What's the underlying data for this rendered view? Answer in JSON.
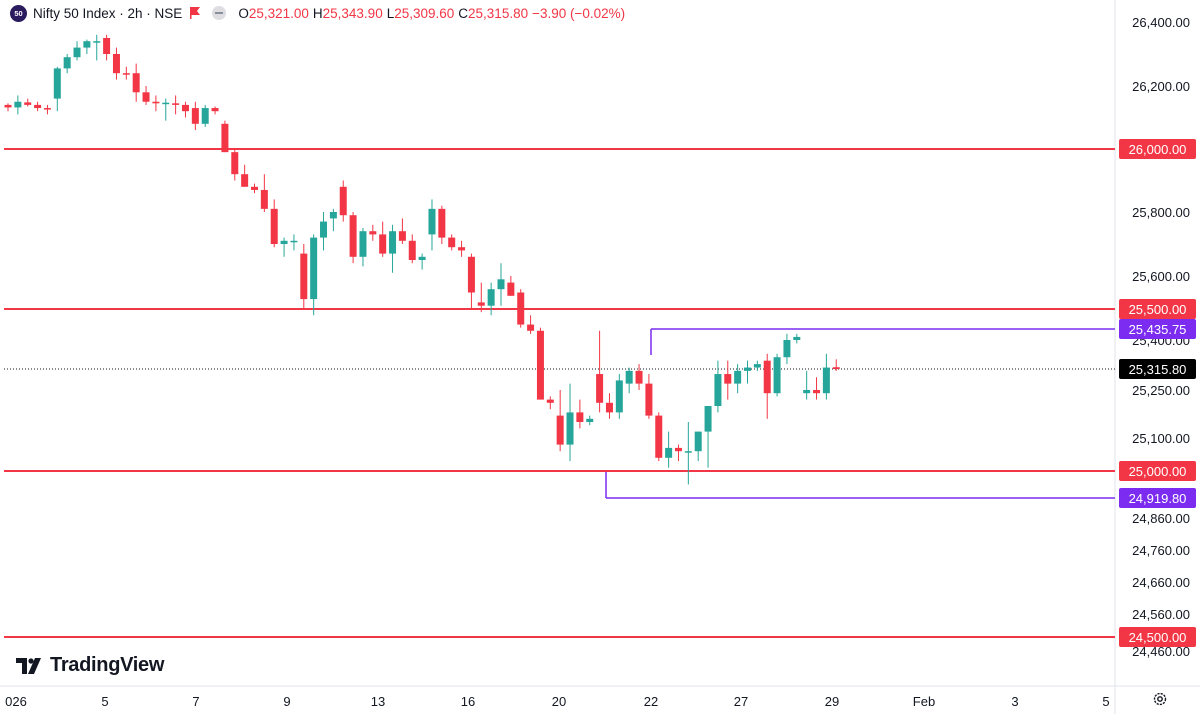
{
  "header": {
    "symbol_badge": "50",
    "title": "Nifty 50 Index · 2h · NSE",
    "ohlc": {
      "o_label": "O",
      "o_value": "25,321.00",
      "h_label": "H",
      "h_value": "25,343.90",
      "l_label": "L",
      "l_value": "25,309.60",
      "c_label": "C",
      "c_value": "25,315.80",
      "change": "−3.90 (−0.02%)"
    }
  },
  "logo": {
    "text": "TradingView"
  },
  "icons": {
    "symbol": "nifty-50-badge",
    "flag": "flag-icon",
    "visibility": "eye-icon",
    "settings": "gear-icon"
  },
  "colors": {
    "up": "#26a69a",
    "down": "#f23645",
    "level_line": "#f23645",
    "range_line": "#7b2cf0",
    "price_line": "#131722"
  },
  "chart_data": {
    "type": "candlestick",
    "title": "",
    "ylim": [
      24400,
      26420
    ],
    "y_ticks": [
      "26,400.00",
      "26,200.00",
      "25,800.00",
      "25,600.00",
      "25,400.00",
      "25,250.00",
      "25,100.00",
      "24,860.00",
      "24,760.00",
      "24,660.00",
      "24,560.00",
      "24,460.00"
    ],
    "x_ticks": [
      "026",
      "5",
      "7",
      "9",
      "13",
      "16",
      "20",
      "22",
      "27",
      "29",
      "Feb",
      "3",
      "5"
    ],
    "price_labels": [
      {
        "value": 26000,
        "text": "26,000.00",
        "kind": "level"
      },
      {
        "value": 25500,
        "text": "25,500.00",
        "kind": "level"
      },
      {
        "value": 25435.75,
        "text": "25,435.75",
        "kind": "range"
      },
      {
        "value": 25315.8,
        "text": "25,315.80",
        "kind": "last"
      },
      {
        "value": 25000,
        "text": "25,000.00",
        "kind": "level"
      },
      {
        "value": 24919.8,
        "text": "24,919.80",
        "kind": "range"
      },
      {
        "value": 24500,
        "text": "24,500.00",
        "kind": "level"
      }
    ],
    "horizontal_levels": [
      26000,
      25500,
      25000,
      24500
    ],
    "range_box": {
      "high": 25435.75,
      "low": 24919.8
    },
    "candles": [
      [
        26140,
        26145,
        26120,
        26132
      ],
      [
        26132,
        26170,
        26110,
        26150
      ],
      [
        26148,
        26160,
        26135,
        26140
      ],
      [
        26140,
        26150,
        26120,
        26130
      ],
      [
        26130,
        26140,
        26110,
        26128
      ],
      [
        26160,
        26260,
        26120,
        26255
      ],
      [
        26255,
        26300,
        26240,
        26290
      ],
      [
        26290,
        26340,
        26280,
        26320
      ],
      [
        26320,
        26345,
        26300,
        26340
      ],
      [
        26340,
        26360,
        26280,
        26340
      ],
      [
        26350,
        26360,
        26280,
        26300
      ],
      [
        26300,
        26320,
        26220,
        26240
      ],
      [
        26240,
        26260,
        26220,
        26238
      ],
      [
        26240,
        26270,
        26150,
        26180
      ],
      [
        26180,
        26200,
        26140,
        26150
      ],
      [
        26150,
        26170,
        26120,
        26145
      ],
      [
        26145,
        26160,
        26090,
        26147
      ],
      [
        26145,
        26170,
        26110,
        26140
      ],
      [
        26140,
        26150,
        26100,
        26120
      ],
      [
        26130,
        26150,
        26060,
        26080
      ],
      [
        26080,
        26140,
        26070,
        26130
      ],
      [
        26130,
        26135,
        26110,
        26120
      ],
      [
        26080,
        26090,
        25990,
        25990
      ],
      [
        25990,
        26000,
        25900,
        25920
      ],
      [
        25920,
        25950,
        25880,
        25880
      ],
      [
        25880,
        25890,
        25860,
        25870
      ],
      [
        25870,
        25920,
        25800,
        25810
      ],
      [
        25810,
        25840,
        25690,
        25700
      ],
      [
        25700,
        25720,
        25660,
        25710
      ],
      [
        25710,
        25730,
        25680,
        25710
      ],
      [
        25670,
        25700,
        25500,
        25530
      ],
      [
        25530,
        25730,
        25480,
        25720
      ],
      [
        25720,
        25800,
        25680,
        25770
      ],
      [
        25780,
        25810,
        25740,
        25800
      ],
      [
        25880,
        25900,
        25770,
        25790
      ],
      [
        25790,
        25800,
        25640,
        25660
      ],
      [
        25660,
        25750,
        25630,
        25740
      ],
      [
        25740,
        25760,
        25710,
        25730
      ],
      [
        25730,
        25770,
        25660,
        25670
      ],
      [
        25670,
        25760,
        25610,
        25740
      ],
      [
        25740,
        25780,
        25700,
        25710
      ],
      [
        25710,
        25730,
        25640,
        25650
      ],
      [
        25650,
        25670,
        25620,
        25660
      ],
      [
        25730,
        25840,
        25680,
        25810
      ],
      [
        25810,
        25820,
        25700,
        25720
      ],
      [
        25720,
        25730,
        25680,
        25690
      ],
      [
        25690,
        25710,
        25660,
        25680
      ],
      [
        25660,
        25670,
        25500,
        25550
      ],
      [
        25520,
        25580,
        25490,
        25510
      ],
      [
        25510,
        25580,
        25480,
        25560
      ],
      [
        25560,
        25640,
        25510,
        25590
      ],
      [
        25580,
        25600,
        25540,
        25540
      ],
      [
        25550,
        25560,
        25440,
        25450
      ],
      [
        25450,
        25480,
        25420,
        25430
      ],
      [
        25430,
        25440,
        25220,
        25220
      ],
      [
        25220,
        25230,
        25190,
        25210
      ],
      [
        25170,
        25250,
        25060,
        25080
      ],
      [
        25080,
        25270,
        25030,
        25180
      ],
      [
        25180,
        25220,
        25130,
        25150
      ],
      [
        25150,
        25170,
        25140,
        25160
      ],
      [
        25300,
        25430,
        25180,
        25210
      ],
      [
        25210,
        25240,
        25160,
        25180
      ],
      [
        25180,
        25300,
        25160,
        25280
      ],
      [
        25270,
        25320,
        25240,
        25310
      ],
      [
        25310,
        25330,
        25250,
        25270
      ],
      [
        25270,
        25300,
        25160,
        25170
      ],
      [
        25170,
        25180,
        25030,
        25040
      ],
      [
        25040,
        25120,
        25010,
        25070
      ],
      [
        25070,
        25080,
        25030,
        25060
      ],
      [
        25060,
        25150,
        24960,
        25060
      ],
      [
        25060,
        25120,
        25030,
        25120
      ],
      [
        25120,
        25180,
        25010,
        25200
      ],
      [
        25200,
        25340,
        25180,
        25300
      ],
      [
        25300,
        25340,
        25220,
        25270
      ],
      [
        25270,
        25330,
        25240,
        25310
      ],
      [
        25310,
        25340,
        25270,
        25320
      ],
      [
        25320,
        25340,
        25310,
        25330
      ],
      [
        25340,
        25360,
        25160,
        25240
      ],
      [
        25240,
        25360,
        25230,
        25350
      ],
      [
        25350,
        25420,
        25330,
        25400
      ],
      [
        25400,
        25420,
        25390,
        25410
      ],
      [
        25240,
        25310,
        25220,
        25250
      ],
      [
        25250,
        25290,
        25220,
        25240
      ],
      [
        25240,
        25360,
        25220,
        25320
      ],
      [
        25321,
        25343.9,
        25309.6,
        25315.8
      ]
    ]
  }
}
